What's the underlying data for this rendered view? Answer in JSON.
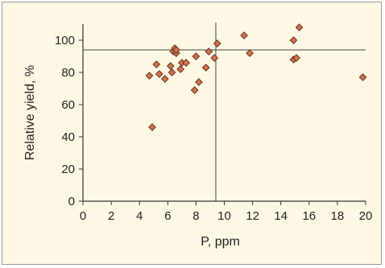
{
  "chart_data": {
    "type": "scatter",
    "title": "",
    "xlabel": "P,  ppm",
    "ylabel": "Relative yield, %",
    "xlim": [
      0,
      20
    ],
    "ylim": [
      0,
      110
    ],
    "x_ticks": [
      0,
      2,
      4,
      6,
      8,
      10,
      12,
      14,
      16,
      18,
      20
    ],
    "y_ticks": [
      0,
      20,
      40,
      60,
      80,
      100
    ],
    "grid": false,
    "reference_lines": {
      "vertical_x": 9.4,
      "horizontal_y": 94
    },
    "colors": {
      "marker_fill": "#d4714f",
      "marker_stroke": "#5a2a18",
      "background": "#fdf8e3",
      "axis": "#333333"
    },
    "series": [
      {
        "marker": "diamond",
        "points": [
          {
            "x": 4.7,
            "y": 78
          },
          {
            "x": 4.9,
            "y": 46
          },
          {
            "x": 5.2,
            "y": 85
          },
          {
            "x": 5.4,
            "y": 79
          },
          {
            "x": 5.8,
            "y": 76
          },
          {
            "x": 6.2,
            "y": 84
          },
          {
            "x": 6.3,
            "y": 80
          },
          {
            "x": 6.4,
            "y": 93
          },
          {
            "x": 6.5,
            "y": 95
          },
          {
            "x": 6.6,
            "y": 92
          },
          {
            "x": 6.6,
            "y": 94
          },
          {
            "x": 6.9,
            "y": 82
          },
          {
            "x": 7.0,
            "y": 86
          },
          {
            "x": 7.3,
            "y": 86
          },
          {
            "x": 7.9,
            "y": 69
          },
          {
            "x": 8.0,
            "y": 90
          },
          {
            "x": 8.2,
            "y": 74
          },
          {
            "x": 8.7,
            "y": 83
          },
          {
            "x": 8.9,
            "y": 93
          },
          {
            "x": 9.3,
            "y": 89
          },
          {
            "x": 9.5,
            "y": 98
          },
          {
            "x": 11.4,
            "y": 103
          },
          {
            "x": 11.8,
            "y": 92
          },
          {
            "x": 14.9,
            "y": 100
          },
          {
            "x": 14.9,
            "y": 88
          },
          {
            "x": 15.1,
            "y": 89
          },
          {
            "x": 15.3,
            "y": 108
          },
          {
            "x": 19.8,
            "y": 77
          }
        ]
      }
    ]
  }
}
